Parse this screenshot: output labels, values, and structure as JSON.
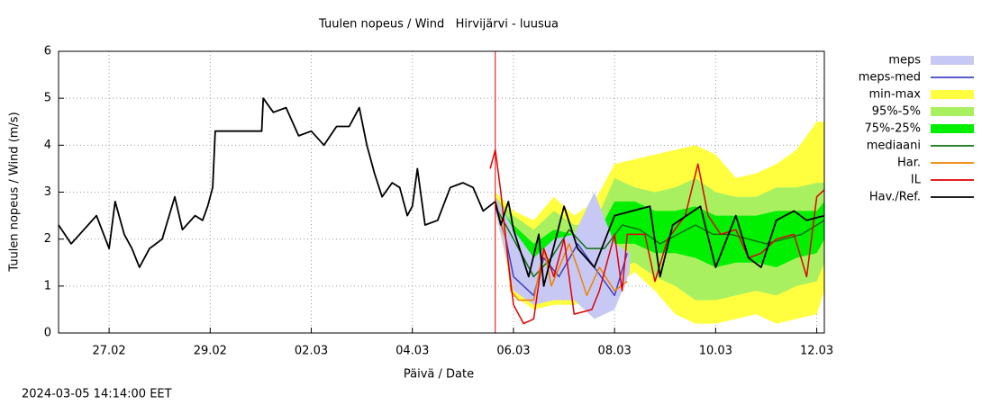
{
  "chart_data": {
    "type": "line",
    "title": "Tuulen nopeus / Wind   Hirvijärvi - luusua",
    "ylabel": "Tuulen nopeus / Wind (m/s)",
    "xlabel": "Päivä / Date",
    "timestamp": "2024-03-05 14:14:00 EET",
    "xlim": [
      0,
      15.15
    ],
    "xticks": [
      {
        "value": 1,
        "label": "27.02"
      },
      {
        "value": 3,
        "label": "29.02"
      },
      {
        "value": 5,
        "label": "02.03"
      },
      {
        "value": 7,
        "label": "04.03"
      },
      {
        "value": 9,
        "label": "06.03"
      },
      {
        "value": 11,
        "label": "08.03"
      },
      {
        "value": 13,
        "label": "10.03"
      },
      {
        "value": 15,
        "label": "12.03"
      }
    ],
    "ylim": [
      0,
      6
    ],
    "yticks": [
      0,
      1,
      2,
      3,
      4,
      5,
      6
    ],
    "grid": true,
    "legend": "right",
    "forecast_start": 8.64,
    "forecast_start_color": "#e00000",
    "series": [
      {
        "name": "meps",
        "kind": "band",
        "color": "#c8c8f4",
        "x": [
          8.64,
          9.0,
          9.4,
          9.8,
          10.2,
          10.6,
          11.0,
          11.3
        ],
        "low": [
          2.6,
          0.9,
          0.6,
          0.7,
          0.7,
          0.3,
          0.5,
          1.3
        ],
        "high": [
          2.9,
          2.2,
          1.6,
          2.0,
          2.1,
          3.0,
          1.9,
          1.7
        ]
      },
      {
        "name": "meps-med",
        "kind": "line",
        "color": "#4040c0",
        "x": [
          8.64,
          8.85,
          9.0,
          9.4,
          9.6,
          9.9,
          10.27,
          10.6,
          11.0,
          11.25
        ],
        "values": [
          2.7,
          2.0,
          1.2,
          0.8,
          1.6,
          1.2,
          1.9,
          1.4,
          0.8,
          1.7
        ]
      },
      {
        "name": "min-max",
        "kind": "band",
        "color": "#ffff40",
        "x": [
          8.64,
          9.0,
          9.4,
          9.8,
          10.2,
          10.6,
          11.0,
          11.4,
          11.8,
          12.2,
          12.6,
          13.0,
          13.4,
          13.8,
          14.2,
          14.6,
          15.0,
          15.15
        ],
        "low": [
          2.6,
          0.8,
          0.5,
          0.6,
          0.6,
          0.7,
          1.0,
          1.3,
          0.9,
          0.4,
          0.2,
          0.2,
          0.3,
          0.4,
          0.2,
          0.3,
          0.4,
          0.9
        ],
        "high": [
          3.0,
          2.6,
          2.4,
          2.9,
          2.5,
          2.8,
          3.6,
          3.7,
          3.8,
          3.9,
          4.0,
          3.8,
          3.3,
          3.4,
          3.6,
          3.9,
          4.5,
          4.5
        ]
      },
      {
        "name": "95%-5%",
        "kind": "band",
        "color": "#a8f060",
        "x": [
          8.64,
          9.0,
          9.4,
          9.8,
          10.2,
          10.6,
          11.0,
          11.4,
          11.8,
          12.2,
          12.6,
          13.0,
          13.4,
          13.8,
          14.2,
          14.6,
          15.0,
          15.15
        ],
        "low": [
          2.6,
          1.3,
          0.9,
          1.1,
          1.0,
          1.1,
          1.4,
          1.5,
          1.2,
          1.0,
          0.7,
          0.7,
          0.8,
          0.9,
          0.8,
          1.0,
          1.1,
          1.5
        ],
        "high": [
          2.9,
          2.5,
          2.2,
          2.6,
          2.3,
          2.3,
          3.3,
          3.1,
          3.0,
          3.1,
          3.3,
          3.0,
          2.9,
          2.9,
          3.1,
          3.1,
          3.2,
          3.2
        ]
      },
      {
        "name": "75%-25%",
        "kind": "band",
        "color": "#00f000",
        "x": [
          8.64,
          9.0,
          9.4,
          9.8,
          10.2,
          10.6,
          11.0,
          11.4,
          11.8,
          12.2,
          12.6,
          13.0,
          13.4,
          13.8,
          14.2,
          14.6,
          15.0,
          15.15
        ],
        "low": [
          2.6,
          1.8,
          1.3,
          1.4,
          1.5,
          1.5,
          1.9,
          1.9,
          1.7,
          1.7,
          1.6,
          1.4,
          1.5,
          1.5,
          1.4,
          1.6,
          1.7,
          2.0
        ],
        "high": [
          2.8,
          2.3,
          1.9,
          2.2,
          2.1,
          2.0,
          2.8,
          2.8,
          2.6,
          2.6,
          2.7,
          2.5,
          2.5,
          2.5,
          2.6,
          2.6,
          2.6,
          2.8
        ]
      },
      {
        "name": "mediaani",
        "kind": "line",
        "color": "#107010",
        "x": [
          8.64,
          9.0,
          9.4,
          9.75,
          10.1,
          10.45,
          10.8,
          11.15,
          11.5,
          11.9,
          12.25,
          12.6,
          12.95,
          13.3,
          13.65,
          14.0,
          14.35,
          14.7,
          15.15
        ],
        "values": [
          2.7,
          2.0,
          1.2,
          1.6,
          2.2,
          1.8,
          1.8,
          2.3,
          2.2,
          1.9,
          2.1,
          2.3,
          2.1,
          2.1,
          2.0,
          1.9,
          2.0,
          2.1,
          2.4
        ]
      },
      {
        "name": "Har.",
        "kind": "line",
        "color": "#f08000",
        "x": [
          8.64,
          8.85,
          8.95,
          9.1,
          9.4,
          9.6,
          9.75,
          10.1,
          10.3,
          10.45,
          10.7,
          11.0,
          11.25
        ],
        "values": [
          2.8,
          2.0,
          0.9,
          0.7,
          0.7,
          1.8,
          1.0,
          1.9,
          1.3,
          0.8,
          1.4,
          0.9,
          1.1
        ]
      },
      {
        "name": "IL",
        "kind": "line",
        "color": "#e00000",
        "x": [
          8.54,
          8.64,
          8.75,
          8.9,
          9.0,
          9.2,
          9.4,
          9.6,
          9.8,
          10.0,
          10.2,
          10.55,
          10.7,
          11.0,
          11.15,
          11.25,
          11.6,
          11.8,
          12.05,
          12.4,
          12.65,
          12.85,
          13.1,
          13.4,
          13.65,
          13.9,
          14.2,
          14.55,
          14.8,
          15.0,
          15.15
        ],
        "values": [
          3.5,
          3.9,
          3.0,
          1.5,
          0.6,
          0.2,
          0.3,
          1.8,
          1.2,
          2.0,
          0.4,
          0.5,
          0.9,
          2.1,
          0.9,
          2.1,
          2.1,
          1.1,
          2.0,
          2.5,
          3.6,
          2.5,
          2.1,
          2.2,
          1.6,
          1.7,
          2.0,
          2.1,
          1.2,
          2.9,
          3.05
        ]
      },
      {
        "name": "Hav./Ref.",
        "kind": "line",
        "color": "#000000",
        "x": [
          0,
          0.25,
          0.5,
          0.75,
          1.0,
          1.12,
          1.3,
          1.45,
          1.6,
          1.8,
          2.05,
          2.3,
          2.45,
          2.7,
          2.85,
          2.95,
          3.05,
          3.1,
          4.02,
          4.05,
          4.25,
          4.5,
          4.75,
          5.0,
          5.25,
          5.5,
          5.75,
          5.95,
          6.1,
          6.25,
          6.4,
          6.6,
          6.75,
          6.9,
          7.0,
          7.1,
          7.25,
          7.5,
          7.75,
          8.0,
          8.2,
          8.4,
          8.64,
          8.75,
          8.9,
          9.0,
          9.3,
          9.5,
          9.6,
          10.0,
          10.27,
          10.6,
          11.0,
          11.35,
          11.7,
          11.9,
          12.15,
          12.7,
          13.0,
          13.4,
          13.65,
          13.9,
          14.2,
          14.55,
          14.8,
          15.15
        ],
        "values": [
          2.3,
          1.9,
          2.2,
          2.5,
          1.8,
          2.8,
          2.1,
          1.8,
          1.4,
          1.8,
          2.0,
          2.9,
          2.2,
          2.5,
          2.4,
          2.7,
          3.1,
          4.3,
          4.3,
          5.0,
          4.7,
          4.8,
          4.2,
          4.3,
          4.0,
          4.4,
          4.4,
          4.8,
          4.0,
          3.4,
          2.9,
          3.2,
          3.1,
          2.5,
          2.7,
          3.5,
          2.3,
          2.4,
          3.1,
          3.2,
          3.1,
          2.6,
          2.8,
          2.3,
          2.8,
          2.2,
          1.2,
          2.1,
          1.0,
          2.7,
          1.8,
          1.4,
          2.5,
          2.6,
          2.7,
          1.2,
          2.3,
          2.7,
          1.4,
          2.5,
          1.6,
          1.4,
          2.4,
          2.6,
          2.4,
          2.5
        ]
      }
    ]
  }
}
